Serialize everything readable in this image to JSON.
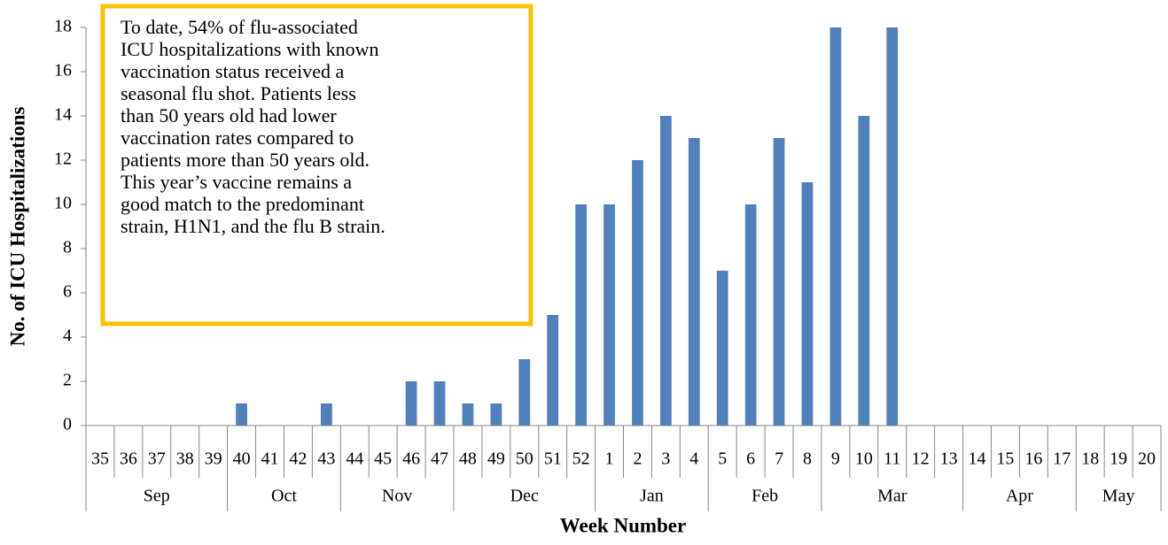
{
  "chart_data": {
    "type": "bar",
    "y_label": "No. of ICU Hospitalizations",
    "x_label": "Week Number",
    "annotation": [
      "To date, 54% of flu-associated",
      "ICU hospitalizations with known",
      "vaccination status received a",
      "seasonal flu shot. Patients less",
      "than 50 years old had lower",
      "vaccination rates compared to",
      "patients more than 50 years old.",
      "This year’s vaccine remains a",
      "good match to the predominant",
      "strain, H1N1, and the flu B strain."
    ],
    "categories": [
      "35",
      "36",
      "37",
      "38",
      "39",
      "40",
      "41",
      "42",
      "43",
      "44",
      "45",
      "46",
      "47",
      "48",
      "49",
      "50",
      "51",
      "52",
      "1",
      "2",
      "3",
      "4",
      "5",
      "6",
      "7",
      "8",
      "9",
      "10",
      "11",
      "12",
      "13",
      "14",
      "15",
      "16",
      "17",
      "18",
      "19",
      "20"
    ],
    "months": [
      "Sep",
      null,
      null,
      null,
      null,
      "Oct",
      null,
      null,
      null,
      "Nov",
      null,
      null,
      null,
      "Dec",
      null,
      null,
      null,
      null,
      "Jan",
      null,
      null,
      null,
      "Feb",
      null,
      null,
      null,
      "Mar",
      null,
      null,
      null,
      null,
      "Apr",
      null,
      null,
      null,
      "May",
      null,
      null
    ],
    "values": [
      0,
      0,
      0,
      0,
      0,
      1,
      0,
      0,
      1,
      0,
      0,
      2,
      2,
      1,
      1,
      3,
      5,
      10,
      10,
      12,
      14,
      13,
      7,
      10,
      13,
      11,
      18,
      14,
      18,
      0,
      0,
      0,
      0,
      0,
      0,
      0,
      0,
      0
    ],
    "color": "#4f81bd",
    "annotation_border": "#ffc000",
    "ylim": [
      0,
      18
    ],
    "yticks": [
      0,
      2,
      4,
      6,
      8,
      10,
      12,
      14,
      16,
      18
    ],
    "grid": false
  }
}
